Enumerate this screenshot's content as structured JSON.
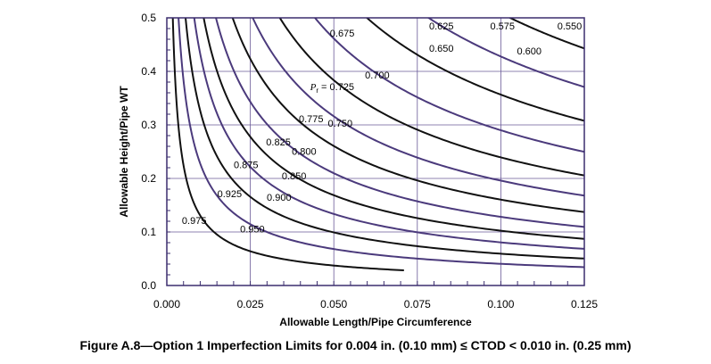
{
  "caption": "Figure  A.8—Option 1 Imperfection Limits for 0.004 in. (0.10 mm) ≤ CTOD < 0.010 in. (0.25 mm)",
  "chart_data": {
    "type": "line",
    "title": "",
    "xlabel": "Allowable Length/Pipe Circumference",
    "ylabel": "Allowable Height/Pipe WT",
    "xlim": [
      0,
      0.125
    ],
    "ylim": [
      0,
      0.5
    ],
    "x_ticks": [
      "0.000",
      "0.025",
      "0.050",
      "0.075",
      "0.100",
      "0.125"
    ],
    "y_ticks": [
      "0.0",
      "0.1",
      "0.2",
      "0.3",
      "0.4",
      "0.5"
    ],
    "grid": true,
    "colors": {
      "dark": "#111111",
      "purple": "#4b3a7c",
      "frame": "#3b2d6e",
      "grid": "#6a5a98"
    },
    "series": [
      {
        "name": "0.550",
        "label": "0.550",
        "color": "purple",
        "k": 0.25,
        "p": 0.5
      },
      {
        "name": "0.575",
        "label": "0.575",
        "color": "dark",
        "k": 0.24,
        "p": 0.52
      },
      {
        "name": "0.600",
        "label": "0.600",
        "color": "purple",
        "k": 0.215,
        "p": 0.55
      },
      {
        "name": "0.625",
        "label": "0.625",
        "color": "dark",
        "k": 0.18,
        "p": 0.58
      },
      {
        "name": "0.650",
        "label": "0.650",
        "color": "purple",
        "k": 0.152,
        "p": 0.6
      },
      {
        "name": "0.675",
        "label": "0.675",
        "color": "dark",
        "k": 0.122,
        "p": 0.62
      },
      {
        "name": "0.700",
        "label": "0.700",
        "color": "purple",
        "k": 0.098,
        "p": 0.64
      },
      {
        "name": "0.725",
        "label": "0.725",
        "color": "dark",
        "k": 0.078,
        "p": 0.66
      },
      {
        "name": "0.750",
        "label": "0.750",
        "color": "purple",
        "k": 0.062,
        "p": 0.67
      },
      {
        "name": "0.775",
        "label": "0.775",
        "color": "dark",
        "k": 0.05,
        "p": 0.68
      },
      {
        "name": "0.800",
        "label": "0.800",
        "color": "purple",
        "k": 0.04,
        "p": 0.69
      },
      {
        "name": "0.825",
        "label": "0.825",
        "color": "dark",
        "k": 0.032,
        "p": 0.7
      },
      {
        "name": "0.850",
        "label": "0.850",
        "color": "purple",
        "k": 0.025,
        "p": 0.71
      },
      {
        "name": "0.875",
        "label": "0.875",
        "color": "dark",
        "k": 0.0195,
        "p": 0.72
      },
      {
        "name": "0.900",
        "label": "0.900",
        "color": "purple",
        "k": 0.015,
        "p": 0.73
      },
      {
        "name": "0.925",
        "label": "0.925",
        "color": "dark",
        "k": 0.0108,
        "p": 0.74
      },
      {
        "name": "0.950",
        "label": "0.950",
        "color": "purple",
        "k": 0.0072,
        "p": 0.75
      },
      {
        "name": "0.975",
        "label": "0.975",
        "color": "dark",
        "k": 0.0036,
        "p": 0.78,
        "xmax": 0.071
      }
    ],
    "annotations": [
      {
        "text": "0.550",
        "x": 0.1206,
        "y": 0.478
      },
      {
        "text": "0.575",
        "x": 0.1005,
        "y": 0.478
      },
      {
        "text": "0.600",
        "x": 0.1085,
        "y": 0.432
      },
      {
        "text": "0.625",
        "x": 0.0822,
        "y": 0.478
      },
      {
        "text": "0.650",
        "x": 0.0822,
        "y": 0.437
      },
      {
        "text": "0.675",
        "x": 0.0525,
        "y": 0.465
      },
      {
        "text": "0.700",
        "x": 0.063,
        "y": 0.387
      },
      {
        "text": "0.725",
        "x": 0.0495,
        "y": 0.365,
        "prefix": "P",
        "sub": "r",
        "joiner": " = "
      },
      {
        "text": "0.750",
        "x": 0.0519,
        "y": 0.297
      },
      {
        "text": "0.775",
        "x": 0.0432,
        "y": 0.305
      },
      {
        "text": "0.800",
        "x": 0.0411,
        "y": 0.244
      },
      {
        "text": "0.825",
        "x": 0.0334,
        "y": 0.262
      },
      {
        "text": "0.850",
        "x": 0.0381,
        "y": 0.198
      },
      {
        "text": "0.875",
        "x": 0.0237,
        "y": 0.219
      },
      {
        "text": "0.900",
        "x": 0.0336,
        "y": 0.158
      },
      {
        "text": "0.925",
        "x": 0.0188,
        "y": 0.165
      },
      {
        "text": "0.950",
        "x": 0.0256,
        "y": 0.099
      },
      {
        "text": "0.975",
        "x": 0.0082,
        "y": 0.115
      }
    ]
  }
}
